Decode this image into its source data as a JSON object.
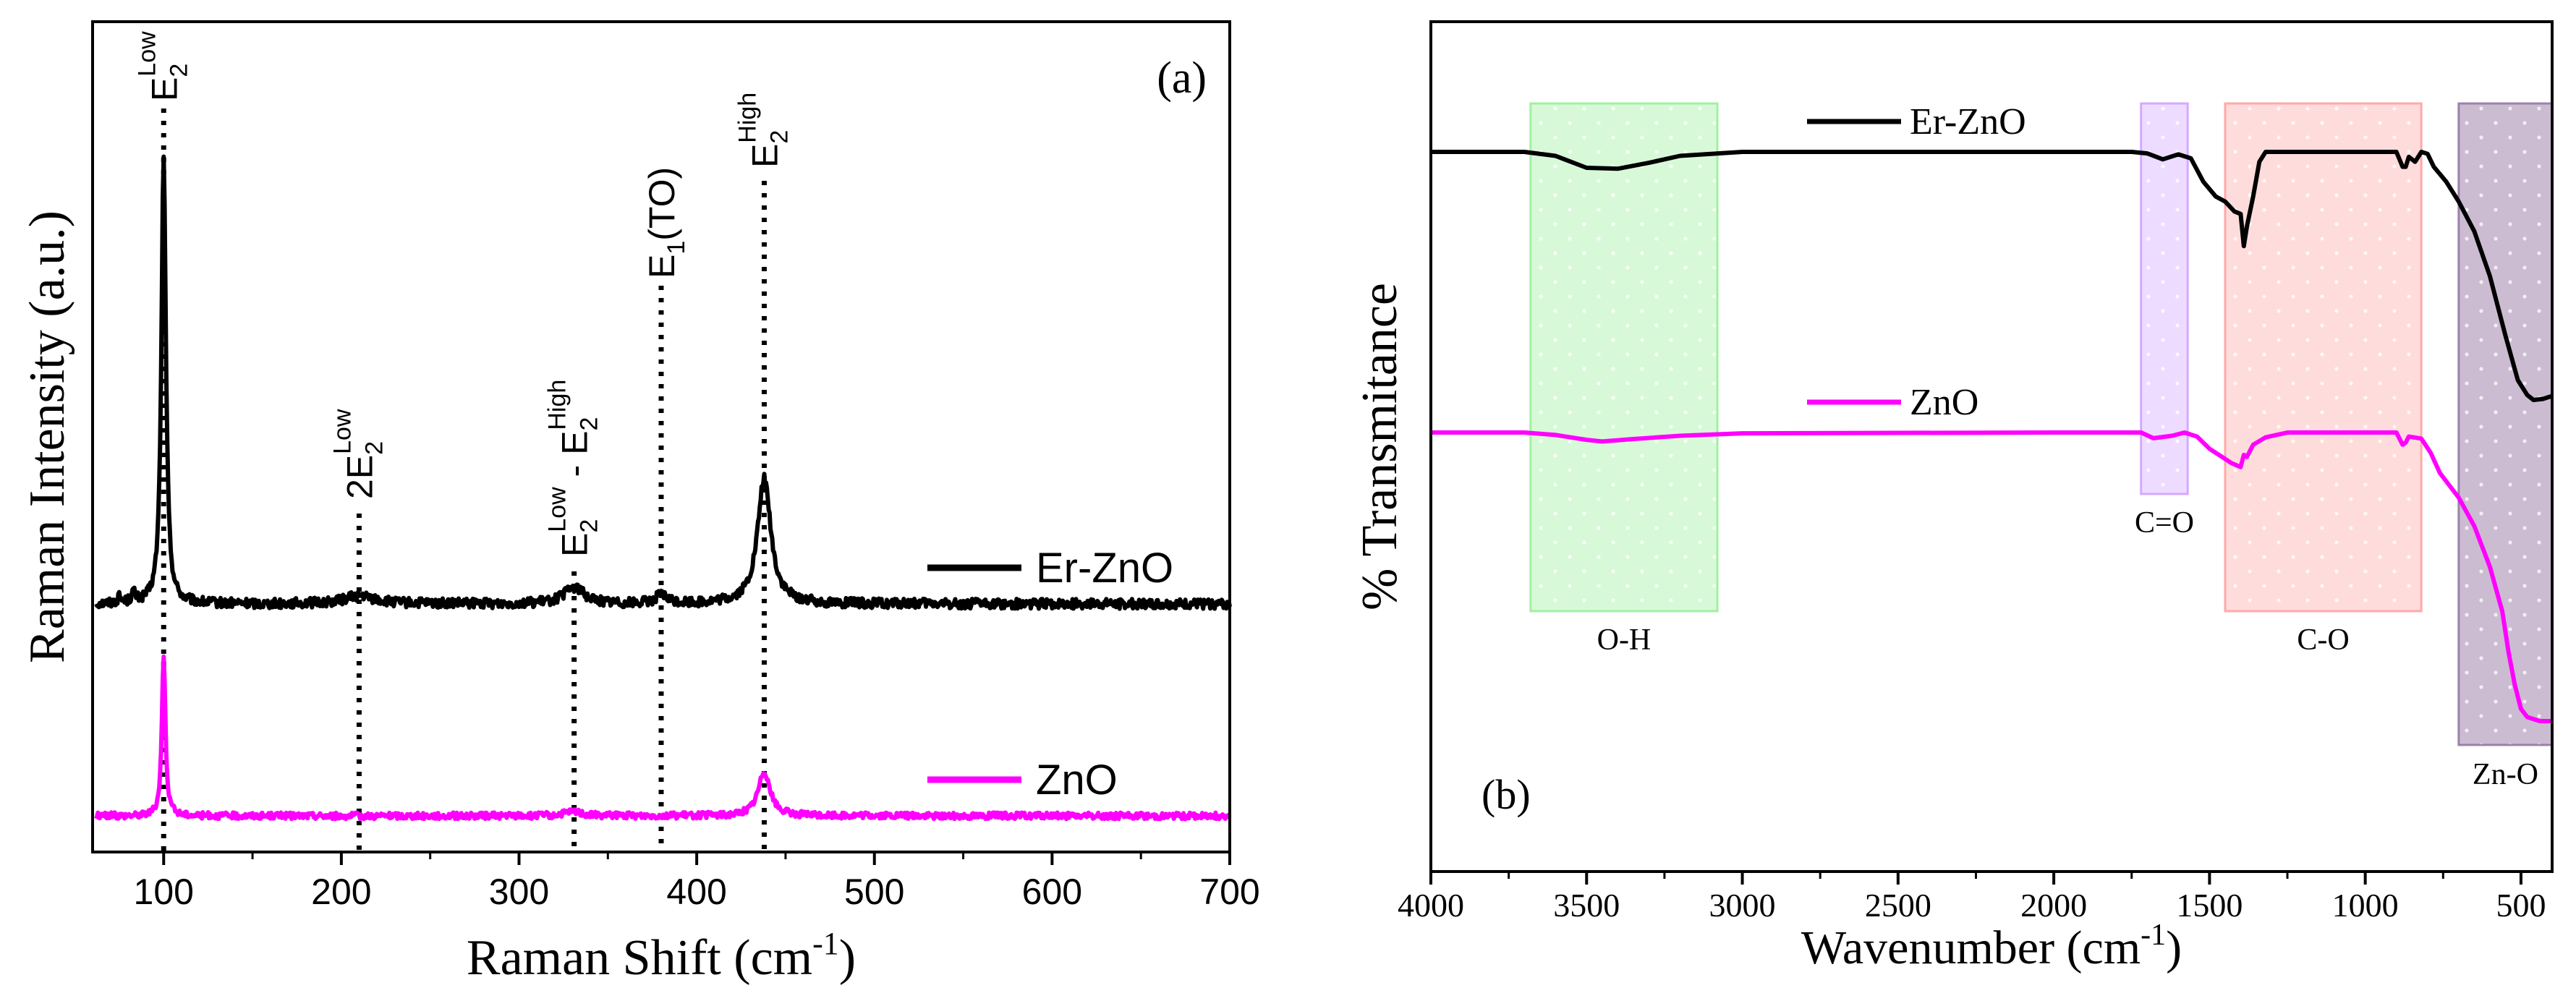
{
  "chart_data": [
    {
      "type": "line",
      "panel_label": "(a)",
      "title": "",
      "xlabel": "Raman Shift (cm",
      "xlabel_sup": "-1",
      "xlabel_end": ")",
      "ylabel": "Raman Intensity (a.u.)",
      "xlim": [
        60,
        700
      ],
      "xticks": [
        100,
        200,
        300,
        400,
        500,
        600,
        700
      ],
      "yticks_visible": false,
      "series": [
        {
          "name": "Er-ZnO",
          "color": "#000000",
          "baseline": 0.58,
          "noise": 0.006,
          "peaks": [
            {
              "x": 100,
              "height": 5.55,
              "width": 1.5
            },
            {
              "x": 83,
              "height": 0.12,
              "width": 1.2
            },
            {
              "x": 75,
              "height": 0.07,
              "width": 1.2
            },
            {
              "x": 210,
              "height": 0.1,
              "width": 10
            },
            {
              "x": 331,
              "height": 0.2,
              "width": 7
            },
            {
              "x": 380,
              "height": 0.1,
              "width": 4
            },
            {
              "x": 438,
              "height": 1.55,
              "width": 4.5
            }
          ]
        },
        {
          "name": "ZnO",
          "color": "#ff00ff",
          "baseline": 0.0,
          "noise": 0.004,
          "peaks": [
            {
              "x": 100,
              "height": 2.0,
              "width": 1.2
            },
            {
              "x": 331,
              "height": 0.05,
              "width": 6
            },
            {
              "x": 438,
              "height": 0.55,
              "width": 4
            }
          ]
        }
      ],
      "legend": [
        "Er-ZnO",
        "ZnO"
      ],
      "mode_markers": [
        {
          "x": 100,
          "label": "E",
          "sub": "2",
          "sup": "Low"
        },
        {
          "x": 210,
          "label": "2E",
          "sub": "2",
          "sup": "Low"
        },
        {
          "x": 331,
          "label": "E",
          "sub": "2",
          "sup": "Low",
          "label2": " - E",
          "sub2": "2",
          "sup2": "High"
        },
        {
          "x": 380,
          "label": "E",
          "sub": "1",
          "tail": "(TO)"
        },
        {
          "x": 438,
          "label": "E",
          "sub": "2",
          "sup": "High"
        }
      ]
    },
    {
      "type": "line",
      "panel_label": "(b)",
      "title": "",
      "xlabel": "Wavenumber (cm",
      "xlabel_sup": "-1",
      "xlabel_end": ")",
      "ylabel": "% Transmitance",
      "xlim": [
        4000,
        400
      ],
      "xticks": [
        4000,
        3500,
        3000,
        2500,
        2000,
        1500,
        1000,
        500
      ],
      "yticks_visible": false,
      "series": [
        {
          "name": "Er-ZnO",
          "color": "#000000",
          "points": [
            [
              4000,
              0.5
            ],
            [
              3700,
              0.5
            ],
            [
              3600,
              0.492
            ],
            [
              3500,
              0.468
            ],
            [
              3400,
              0.466
            ],
            [
              3300,
              0.478
            ],
            [
              3200,
              0.492
            ],
            [
              3000,
              0.5
            ],
            [
              2000,
              0.5
            ],
            [
              1750,
              0.5
            ],
            [
              1700,
              0.497
            ],
            [
              1650,
              0.485
            ],
            [
              1600,
              0.495
            ],
            [
              1560,
              0.487
            ],
            [
              1520,
              0.44
            ],
            [
              1480,
              0.41
            ],
            [
              1450,
              0.4
            ],
            [
              1420,
              0.38
            ],
            [
              1400,
              0.375
            ],
            [
              1390,
              0.31
            ],
            [
              1380,
              0.35
            ],
            [
              1360,
              0.41
            ],
            [
              1340,
              0.48
            ],
            [
              1320,
              0.5
            ],
            [
              900,
              0.5
            ],
            [
              880,
              0.47
            ],
            [
              870,
              0.47
            ],
            [
              860,
              0.49
            ],
            [
              840,
              0.48
            ],
            [
              820,
              0.5
            ],
            [
              800,
              0.496
            ],
            [
              780,
              0.47
            ],
            [
              740,
              0.44
            ],
            [
              700,
              0.4
            ],
            [
              650,
              0.34
            ],
            [
              600,
              0.25
            ],
            [
              550,
              0.13
            ],
            [
              510,
              0.04
            ],
            [
              480,
              0.01
            ],
            [
              460,
              0.0
            ],
            [
              430,
              0.002
            ],
            [
              400,
              0.008
            ]
          ]
        },
        {
          "name": "ZnO",
          "color": "#ff00ff",
          "points": [
            [
              4000,
              0.0
            ],
            [
              3700,
              0.0
            ],
            [
              3600,
              -0.006
            ],
            [
              3500,
              -0.018
            ],
            [
              3450,
              -0.022
            ],
            [
              3350,
              -0.016
            ],
            [
              3200,
              -0.008
            ],
            [
              3000,
              -0.002
            ],
            [
              2000,
              0.0
            ],
            [
              1720,
              0.0
            ],
            [
              1680,
              -0.014
            ],
            [
              1620,
              -0.008
            ],
            [
              1580,
              0.0
            ],
            [
              1540,
              -0.01
            ],
            [
              1500,
              -0.04
            ],
            [
              1460,
              -0.06
            ],
            [
              1430,
              -0.075
            ],
            [
              1400,
              -0.085
            ],
            [
              1390,
              -0.055
            ],
            [
              1380,
              -0.06
            ],
            [
              1360,
              -0.03
            ],
            [
              1320,
              -0.012
            ],
            [
              1250,
              0.0
            ],
            [
              900,
              0.0
            ],
            [
              880,
              -0.03
            ],
            [
              870,
              -0.025
            ],
            [
              860,
              -0.01
            ],
            [
              820,
              -0.015
            ],
            [
              790,
              -0.05
            ],
            [
              760,
              -0.1
            ],
            [
              720,
              -0.14
            ],
            [
              700,
              -0.16
            ],
            [
              650,
              -0.23
            ],
            [
              600,
              -0.33
            ],
            [
              560,
              -0.44
            ],
            [
              540,
              -0.54
            ],
            [
              520,
              -0.62
            ],
            [
              500,
              -0.68
            ],
            [
              480,
              -0.7
            ],
            [
              440,
              -0.71
            ],
            [
              400,
              -0.71
            ]
          ]
        }
      ],
      "legend": [
        "Er-ZnO",
        "ZnO"
      ],
      "regions": [
        {
          "label": "O-H",
          "from": 3680,
          "to": 3080,
          "color": "#90ee90"
        },
        {
          "label": "C=O",
          "from": 1720,
          "to": 1570,
          "color": "#cc99ff"
        },
        {
          "label": "C-O",
          "from": 1450,
          "to": 820,
          "color": "#ff9999"
        },
        {
          "label": "Zn-O",
          "from": 700,
          "to": 400,
          "color": "#8b6a9b"
        }
      ]
    }
  ]
}
